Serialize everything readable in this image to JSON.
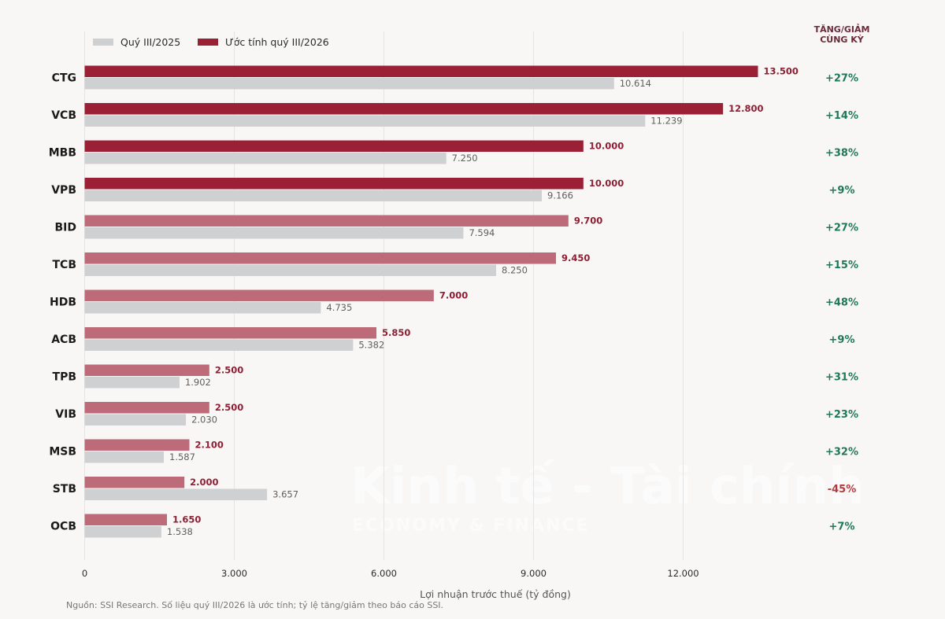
{
  "chart_data": {
    "type": "bar",
    "orientation": "horizontal",
    "categories": [
      "CTG",
      "VCB",
      "MBB",
      "VPB",
      "BID",
      "TCB",
      "HDB",
      "ACB",
      "TPB",
      "VIB",
      "MSB",
      "STB",
      "OCB"
    ],
    "series": [
      {
        "name": "Ước tính quý III/2026",
        "values": [
          13500,
          12800,
          10000,
          10000,
          9700,
          9450,
          7000,
          5850,
          2500,
          2500,
          2100,
          2000,
          1650
        ],
        "labels": [
          "13.500",
          "12.800",
          "10.000",
          "10.000",
          "9.700",
          "9.450",
          "7.000",
          "5.850",
          "2.500",
          "2.500",
          "2.100",
          "2.000",
          "1.650"
        ],
        "color": "#9b2035",
        "color_light": "#be6b79"
      },
      {
        "name": "Quý III/2025",
        "values": [
          10614,
          11239,
          7250,
          9166,
          7594,
          8250,
          4735,
          5382,
          1902,
          2030,
          1587,
          3657,
          1538
        ],
        "labels": [
          "10.614",
          "11.239",
          "7.250",
          "9.166",
          "7.594",
          "8.250",
          "4.735",
          "5.382",
          "1.902",
          "2.030",
          "1.587",
          "3.657",
          "1.538"
        ],
        "color": "#cfd0d2"
      }
    ],
    "change": {
      "header_line1": "TĂNG/GIẢM",
      "header_line2": "CÙNG KỲ",
      "values": [
        "+27%",
        "+14%",
        "+38%",
        "+9%",
        "+27%",
        "+15%",
        "+48%",
        "+9%",
        "+31%",
        "+23%",
        "+32%",
        "-45%",
        "+7%"
      ],
      "positive_color": "#1e7a55",
      "negative_color": "#b23a3f"
    },
    "xlabel": "Lợi nhuận trước thuế (tỷ đồng)",
    "xlim": [
      0,
      15000
    ],
    "xticks": [
      0,
      3000,
      6000,
      9000,
      12000
    ],
    "xtick_labels": [
      "0",
      "3.000",
      "6.000",
      "9.000",
      "12.000"
    ],
    "grid": "vertical",
    "legend_position": "top-left",
    "source": "Nguồn: SSI Research. Số liệu quý III/2026 là ước tính; tỷ lệ tăng/giảm theo báo cáo SSI.",
    "watermark": {
      "main": "Kinh tế - Tài chính",
      "sub": "ECONOMY & FINANCE"
    }
  }
}
